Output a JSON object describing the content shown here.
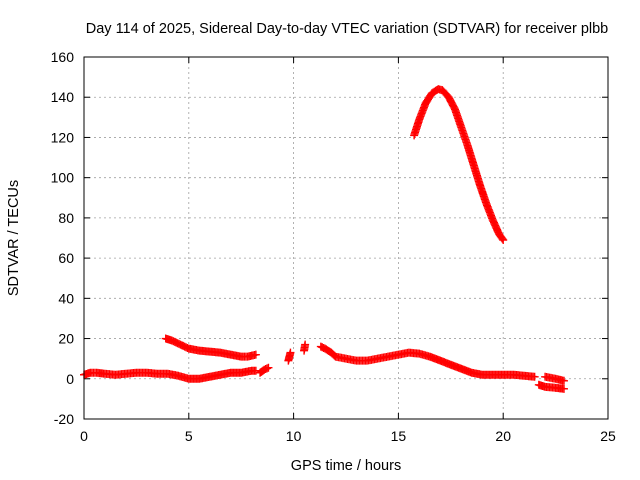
{
  "chart_data": {
    "type": "scatter",
    "title": "Day 114 of 2025, Sidereal Day-to-day VTEC variation (SDTVAR) for receiver plbb",
    "xlabel": "GPS time / hours",
    "ylabel": "SDTVAR / TECUs",
    "xlim": [
      0,
      25
    ],
    "ylim": [
      -20,
      160
    ],
    "xticks": [
      "0",
      "5",
      "10",
      "15",
      "20",
      "25"
    ],
    "yticks": [
      "-20",
      "0",
      "20",
      "40",
      "60",
      "80",
      "100",
      "120",
      "140",
      "160"
    ],
    "xtick_values": [
      0,
      5,
      10,
      15,
      20,
      25
    ],
    "ytick_values": [
      -20,
      0,
      20,
      40,
      60,
      80,
      100,
      120,
      140,
      160
    ],
    "grid": true,
    "marker": "+",
    "series": [
      {
        "name": "SDTVAR",
        "color": "#ff0000",
        "segments": [
          {
            "x": [
              0.0,
              0.3,
              0.6,
              1.0,
              1.5,
              2.0,
              2.5,
              3.0,
              3.5,
              4.0,
              4.5,
              5.0,
              5.5,
              6.0,
              6.5,
              7.0,
              7.5,
              8.0,
              8.2
            ],
            "y": [
              2,
              3,
              3,
              2.5,
              2,
              2.5,
              3,
              3,
              2.5,
              2.5,
              1.5,
              0,
              0,
              1,
              2,
              3,
              3,
              4,
              4
            ]
          },
          {
            "x": [
              3.9,
              4.2,
              4.6,
              5.0,
              5.5,
              6.0,
              6.5,
              7.0,
              7.5,
              7.8,
              8.0,
              8.2
            ],
            "y": [
              20,
              19,
              17,
              15,
              14,
              13.5,
              13,
              12,
              11,
              11,
              11.5,
              12
            ]
          },
          {
            "x": [
              8.4,
              8.6,
              8.8
            ],
            "y": [
              3,
              4.5,
              5.5
            ]
          },
          {
            "x": [
              9.75,
              9.8,
              9.85
            ],
            "y": [
              9,
              11,
              13
            ]
          },
          {
            "x": [
              10.5,
              10.55
            ],
            "y": [
              14,
              17
            ]
          },
          {
            "x": [
              11.3,
              11.5,
              11.8,
              12.0,
              12.5,
              13.0,
              13.5,
              14.0,
              14.5,
              15.0,
              15.5,
              16.0,
              16.5,
              17.0,
              17.5,
              18.0,
              18.5,
              19.0,
              19.5,
              20.0,
              20.5,
              21.0,
              21.5
            ],
            "y": [
              16,
              15,
              13,
              11,
              10,
              9,
              9,
              10,
              11,
              12,
              13,
              12.5,
              11,
              9,
              7,
              5,
              3,
              2,
              2,
              2,
              2,
              1.5,
              1
            ]
          },
          {
            "x": [
              21.7,
              22.0,
              22.5,
              22.9
            ],
            "y": [
              -3,
              -4,
              -4.5,
              -5
            ]
          },
          {
            "x": [
              22.0,
              22.5,
              22.9
            ],
            "y": [
              1,
              0,
              -1
            ]
          },
          {
            "x": [
              15.75,
              16.0,
              16.3,
              16.6,
              16.9,
              17.1,
              17.4,
              17.7,
              18.0,
              18.3,
              18.6,
              18.9,
              19.2,
              19.5,
              19.8,
              20.0
            ],
            "y": [
              121,
              129,
              137,
              142,
              144,
              143.5,
              140,
              134,
              125,
              116,
              106,
              96,
              87,
              79,
              72,
              69
            ]
          }
        ]
      }
    ]
  }
}
